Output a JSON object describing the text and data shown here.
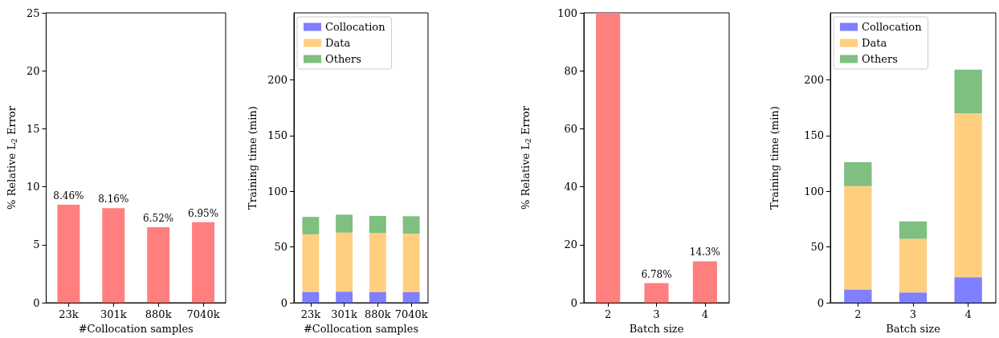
{
  "chart_data": [
    {
      "type": "bar",
      "xlabel": "#Collocation samples",
      "ylabel": "% Relative L$_{2}$ Error",
      "categories": [
        "23k",
        "301k",
        "880k",
        "7040k"
      ],
      "values": [
        8.46,
        8.16,
        6.52,
        6.95
      ],
      "color": "#ff7f7f",
      "value_labels": [
        "8.46%",
        "8.16%",
        "6.52%",
        "6.95%"
      ],
      "ylim": [
        0,
        25
      ],
      "yticks": [
        0,
        5,
        10,
        15,
        20,
        25
      ],
      "grid": false,
      "legend": false
    },
    {
      "type": "bar",
      "xlabel": "#Collocation samples",
      "ylabel": "Training time (min)",
      "categories": [
        "23k",
        "301k",
        "880k",
        "7040k"
      ],
      "stacked": true,
      "series": [
        {
          "name": "Collocation",
          "color": "#7f7fff",
          "values": [
            9.8,
            10,
            9.5,
            9.5
          ]
        },
        {
          "name": "Data",
          "color": "#ffcf7f",
          "values": [
            51.6,
            52.9,
            52.9,
            52.4
          ]
        },
        {
          "name": "Others",
          "color": "#7fbf7f",
          "values": [
            15.6,
            16.1,
            15.5,
            15.7
          ]
        }
      ],
      "ylim": [
        0,
        260
      ],
      "yticks": [
        0,
        50,
        100,
        150,
        200
      ],
      "grid": false,
      "legend": "top left"
    },
    {
      "type": "bar",
      "xlabel": "Batch size",
      "ylabel": "% Relative L$_{2}$ Error",
      "categories": [
        "2",
        "3",
        "4"
      ],
      "values": [
        100,
        6.78,
        14.3
      ],
      "color": "#ff7f7f",
      "value_labels": [
        null,
        "6.78%",
        "14.3%"
      ],
      "ylim": [
        0,
        100
      ],
      "yticks": [
        0,
        20,
        40,
        60,
        80,
        100
      ],
      "grid": false,
      "legend": false
    },
    {
      "type": "bar",
      "xlabel": "Batch size",
      "ylabel": "Training time (min)",
      "categories": [
        "2",
        "3",
        "4"
      ],
      "stacked": true,
      "series": [
        {
          "name": "Collocation",
          "color": "#7f7fff",
          "values": [
            12,
            9.3,
            22.9
          ]
        },
        {
          "name": "Data",
          "color": "#ffcf7f",
          "values": [
            92.7,
            48.1,
            147.1
          ]
        },
        {
          "name": "Others",
          "color": "#7fbf7f",
          "values": [
            21.4,
            15.5,
            39
          ]
        }
      ],
      "ylim": [
        0,
        260
      ],
      "yticks": [
        0,
        50,
        100,
        150,
        200
      ],
      "grid": false,
      "legend": "top left"
    }
  ]
}
